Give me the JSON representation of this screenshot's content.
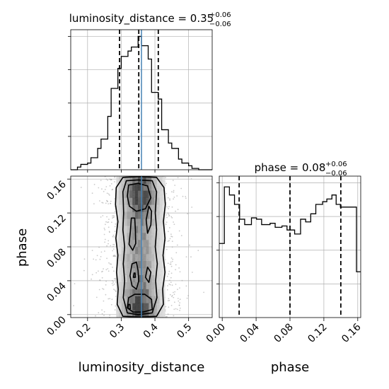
{
  "chart_data": {
    "type": "corner",
    "panels": {
      "dist_hist": {
        "title": "luminosity_distance = 0.35",
        "title_sup": "+0.06",
        "title_sub": "−0.06",
        "xlim": [
          0.15,
          0.57
        ],
        "ylim": [
          0,
          1.05
        ],
        "bins": [
          [
            0.15,
            0.17,
            0.0
          ],
          [
            0.17,
            0.18,
            0.02
          ],
          [
            0.18,
            0.2,
            0.04
          ],
          [
            0.2,
            0.21,
            0.05
          ],
          [
            0.21,
            0.23,
            0.09
          ],
          [
            0.23,
            0.24,
            0.16
          ],
          [
            0.24,
            0.26,
            0.23
          ],
          [
            0.26,
            0.27,
            0.4
          ],
          [
            0.27,
            0.29,
            0.61
          ],
          [
            0.29,
            0.3,
            0.76
          ],
          [
            0.3,
            0.32,
            0.85
          ],
          [
            0.32,
            0.33,
            0.89
          ],
          [
            0.33,
            0.35,
            0.92
          ],
          [
            0.35,
            0.36,
            1.0
          ],
          [
            0.36,
            0.38,
            0.93
          ],
          [
            0.38,
            0.39,
            0.83
          ],
          [
            0.39,
            0.41,
            0.58
          ],
          [
            0.41,
            0.42,
            0.53
          ],
          [
            0.42,
            0.44,
            0.3
          ],
          [
            0.44,
            0.45,
            0.2
          ],
          [
            0.45,
            0.47,
            0.16
          ],
          [
            0.47,
            0.48,
            0.08
          ],
          [
            0.48,
            0.5,
            0.05
          ],
          [
            0.5,
            0.51,
            0.03
          ],
          [
            0.51,
            0.53,
            0.01
          ],
          [
            0.53,
            0.57,
            0.0
          ]
        ],
        "quantile_lines": [
          0.295,
          0.352,
          0.41
        ],
        "truth": 0.36
      },
      "phase_hist": {
        "title": "phase = 0.08",
        "title_sup": "+0.06",
        "title_sub": "−0.06",
        "xlim": [
          -0.0035,
          0.1635
        ],
        "ylim": [
          0,
          1.05
        ],
        "bins": [
          [
            -0.0035,
            0.0025,
            0.55
          ],
          [
            0.0025,
            0.0085,
            0.97
          ],
          [
            0.0085,
            0.0145,
            0.91
          ],
          [
            0.0145,
            0.0205,
            0.84
          ],
          [
            0.0205,
            0.0265,
            0.73
          ],
          [
            0.0265,
            0.0345,
            0.69
          ],
          [
            0.0345,
            0.0405,
            0.74
          ],
          [
            0.0405,
            0.0465,
            0.73
          ],
          [
            0.0465,
            0.0565,
            0.69
          ],
          [
            0.0565,
            0.0625,
            0.7
          ],
          [
            0.0625,
            0.0705,
            0.67
          ],
          [
            0.0705,
            0.0765,
            0.68
          ],
          [
            0.0765,
            0.0855,
            0.65
          ],
          [
            0.0855,
            0.0925,
            0.62
          ],
          [
            0.0925,
            0.0985,
            0.73
          ],
          [
            0.0985,
            0.1045,
            0.71
          ],
          [
            0.1045,
            0.1105,
            0.77
          ],
          [
            0.1105,
            0.1185,
            0.84
          ],
          [
            0.1185,
            0.1235,
            0.86
          ],
          [
            0.1235,
            0.1295,
            0.88
          ],
          [
            0.1295,
            0.1345,
            0.91
          ],
          [
            0.1345,
            0.1395,
            0.84
          ],
          [
            0.1395,
            0.1485,
            0.82
          ],
          [
            0.1485,
            0.1585,
            0.82
          ],
          [
            0.1585,
            0.1635,
            0.34
          ]
        ],
        "quantile_lines": [
          0.02,
          0.08,
          0.14
        ]
      },
      "scatter_2d": {
        "xlim": [
          0.15,
          0.57
        ],
        "ylim": [
          -0.0035,
          0.1635
        ],
        "xlabel": "luminosity_distance",
        "ylabel": "phase",
        "truth_x": 0.36,
        "contours": [
          [
            [
              0.355,
              0.163
            ],
            [
              0.305,
              0.162
            ],
            [
              0.285,
              0.15
            ],
            [
              0.283,
              0.13
            ],
            [
              0.29,
              0.11
            ],
            [
              0.284,
              0.09
            ],
            [
              0.29,
              0.07
            ],
            [
              0.286,
              0.05
            ],
            [
              0.291,
              0.03
            ],
            [
              0.288,
              0.012
            ],
            [
              0.305,
              -0.002
            ],
            [
              0.355,
              -0.003
            ],
            [
              0.405,
              -0.002
            ],
            [
              0.425,
              0.012
            ],
            [
              0.423,
              0.03
            ],
            [
              0.43,
              0.05
            ],
            [
              0.424,
              0.07
            ],
            [
              0.43,
              0.09
            ],
            [
              0.425,
              0.11
            ],
            [
              0.431,
              0.13
            ],
            [
              0.427,
              0.15
            ],
            [
              0.405,
              0.162
            ]
          ],
          [
            [
              0.35,
              0.159
            ],
            [
              0.315,
              0.158
            ],
            [
              0.305,
              0.145
            ],
            [
              0.307,
              0.12
            ],
            [
              0.305,
              0.1
            ],
            [
              0.31,
              0.08
            ],
            [
              0.306,
              0.06
            ],
            [
              0.31,
              0.04
            ],
            [
              0.306,
              0.02
            ],
            [
              0.318,
              0.002
            ],
            [
              0.35,
              0.0
            ],
            [
              0.392,
              0.002
            ],
            [
              0.406,
              0.02
            ],
            [
              0.402,
              0.04
            ],
            [
              0.407,
              0.06
            ],
            [
              0.401,
              0.08
            ],
            [
              0.405,
              0.1
            ],
            [
              0.401,
              0.12
            ],
            [
              0.405,
              0.145
            ],
            [
              0.392,
              0.158
            ]
          ],
          [
            [
              0.35,
              0.155
            ],
            [
              0.322,
              0.153
            ],
            [
              0.318,
              0.14
            ],
            [
              0.324,
              0.128
            ],
            [
              0.345,
              0.122
            ],
            [
              0.372,
              0.125
            ],
            [
              0.388,
              0.138
            ],
            [
              0.378,
              0.152
            ]
          ],
          [
            [
              0.33,
              0.114
            ],
            [
              0.327,
              0.098
            ],
            [
              0.323,
              0.083
            ],
            [
              0.334,
              0.076
            ],
            [
              0.343,
              0.084
            ],
            [
              0.342,
              0.1
            ],
            [
              0.34,
              0.114
            ]
          ],
          [
            [
              0.382,
              0.128
            ],
            [
              0.374,
              0.112
            ],
            [
              0.378,
              0.096
            ],
            [
              0.388,
              0.106
            ],
            [
              0.39,
              0.122
            ]
          ],
          [
            [
              0.332,
              0.06
            ],
            [
              0.326,
              0.046
            ],
            [
              0.332,
              0.034
            ],
            [
              0.345,
              0.03
            ],
            [
              0.352,
              0.04
            ],
            [
              0.35,
              0.052
            ],
            [
              0.345,
              0.062
            ]
          ],
          [
            [
              0.378,
              0.056
            ],
            [
              0.372,
              0.044
            ],
            [
              0.382,
              0.038
            ],
            [
              0.388,
              0.05
            ]
          ],
          [
            [
              0.322,
              0.02
            ],
            [
              0.318,
              0.008
            ],
            [
              0.335,
              0.003
            ],
            [
              0.365,
              0.003
            ],
            [
              0.392,
              0.006
            ],
            [
              0.39,
              0.018
            ],
            [
              0.37,
              0.024
            ],
            [
              0.34,
              0.024
            ]
          ],
          [
            [
              0.322,
              0.012
            ],
            [
              0.32,
              0.007
            ],
            [
              0.327,
              0.007
            ],
            [
              0.326,
              0.012
            ]
          ],
          [
            [
              0.338,
              0.049
            ],
            [
              0.336,
              0.044
            ],
            [
              0.342,
              0.044
            ],
            [
              0.341,
              0.049
            ]
          ]
        ]
      }
    },
    "tick_labels": {
      "dist_x": [
        "0.2",
        "0.3",
        "0.4",
        "0.5"
      ],
      "phase_x": [
        "0.00",
        "0.04",
        "0.08",
        "0.12",
        "0.16"
      ],
      "phase_y": [
        "0.00",
        "0.04",
        "0.08",
        "0.12",
        "0.16"
      ]
    },
    "tick_values": {
      "dist_x": [
        0.2,
        0.3,
        0.4,
        0.5
      ],
      "phase": [
        0.0,
        0.04,
        0.08,
        0.12,
        0.16
      ],
      "hist_y": [
        0.25,
        0.5,
        0.75,
        1.0
      ]
    },
    "grid": true,
    "colors": {
      "hist_line": "#000000",
      "quantile": "#000000",
      "truth": "#4682b4",
      "grid": "#b0b0b0",
      "density_dark": "#303030",
      "scatter": "#a0a0a0"
    }
  }
}
